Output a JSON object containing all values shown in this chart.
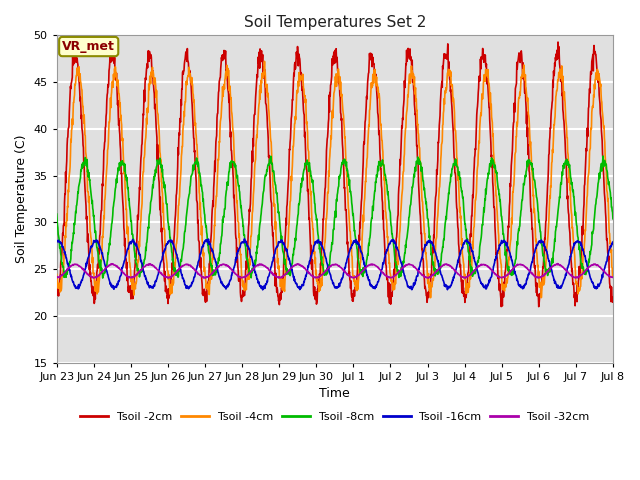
{
  "title": "Soil Temperatures Set 2",
  "xlabel": "Time",
  "ylabel": "Soil Temperature (C)",
  "ylim": [
    15,
    50
  ],
  "xlim": [
    0,
    15
  ],
  "annotation": "VR_met",
  "background_color": "#e0e0e0",
  "figure_color": "#ffffff",
  "grid_color": "#ffffff",
  "legend_labels": [
    "Tsoil -2cm",
    "Tsoil -4cm",
    "Tsoil -8cm",
    "Tsoil -16cm",
    "Tsoil -32cm"
  ],
  "line_colors": [
    "#cc0000",
    "#ff8800",
    "#00bb00",
    "#0000cc",
    "#aa00aa"
  ],
  "line_widths": [
    1.2,
    1.2,
    1.2,
    1.2,
    1.2
  ],
  "x_tick_labels": [
    "Jun 23",
    "Jun 24",
    "Jun 25",
    "Jun 26",
    "Jun 27",
    "Jun 28",
    "Jun 29",
    "Jun 30",
    "Jul 1",
    "Jul 2",
    "Jul 3",
    "Jul 4",
    "Jul 5",
    "Jul 6",
    "Jul 7",
    "Jul 8"
  ],
  "x_tick_positions": [
    0,
    1,
    2,
    3,
    4,
    5,
    6,
    7,
    8,
    9,
    10,
    11,
    12,
    13,
    14,
    15
  ],
  "y_ticks": [
    15,
    20,
    25,
    30,
    35,
    40,
    45,
    50
  ],
  "amplitudes": [
    13.0,
    11.5,
    6.0,
    2.5,
    0.7
  ],
  "baselines": [
    35.0,
    34.5,
    30.5,
    25.5,
    24.8
  ],
  "phase_shifts": [
    0.0,
    0.08,
    0.25,
    0.55,
    1.0
  ],
  "n_points": 1500
}
